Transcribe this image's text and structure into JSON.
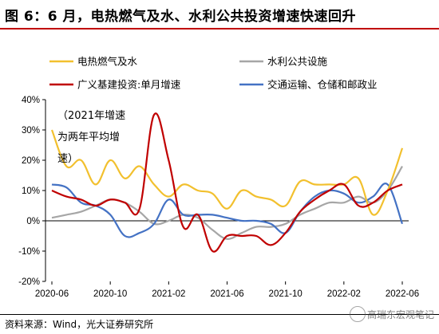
{
  "title": "图 6：6 月，电热燃气及水、水利公共投资增速快速回升",
  "source": "资料来源：Wind，光大证券研究所",
  "watermark": "高瑞东宏观笔记",
  "colors": {
    "title_rule": "#c00000",
    "utilities": "#f2c02e",
    "water_public": "#a6a6a6",
    "broad_infra": "#c00000",
    "transport": "#4472c4",
    "axis": "#000000"
  },
  "chart_data": {
    "type": "line",
    "title": "",
    "xlabel": "",
    "ylabel": "",
    "ylim": [
      -20,
      40
    ],
    "y_ticks": [
      -20,
      -10,
      0,
      10,
      20,
      30,
      40
    ],
    "y_tick_labels": [
      "-20%",
      "-10%",
      "0%",
      "10%",
      "20%",
      "30%",
      "40%"
    ],
    "x_tick_labels": [
      "2020-06",
      "2020-10",
      "2021-02",
      "2021-06",
      "2021-10",
      "2022-02",
      "2022-06"
    ],
    "x_tick_positions": [
      0,
      4,
      8,
      12,
      16,
      20,
      24
    ],
    "x": [
      0,
      1,
      2,
      3,
      4,
      5,
      6,
      7,
      8,
      9,
      10,
      11,
      12,
      13,
      14,
      15,
      16,
      17,
      18,
      19,
      20,
      21,
      22,
      23,
      24
    ],
    "annotation": [
      "（2021年增速",
      "为两年平均增",
      "速）"
    ],
    "grid": false,
    "legend_position": "top",
    "series": [
      {
        "key": "utilities",
        "name": "电热燃气及水",
        "values": [
          30,
          18,
          20,
          12,
          20,
          14,
          18,
          12,
          8,
          12,
          10,
          9,
          4,
          10,
          8,
          7,
          5,
          13,
          12,
          12,
          12,
          14,
          2,
          10,
          24
        ]
      },
      {
        "key": "water_public",
        "name": "水利公共设施",
        "values": [
          1,
          2,
          3,
          5,
          7,
          6,
          3,
          -1,
          0,
          2,
          1,
          -3,
          -6,
          -4,
          -2,
          -2,
          -1,
          2,
          4,
          6,
          6,
          8,
          6,
          10,
          18
        ]
      },
      {
        "key": "broad_infra",
        "name": "广义基建投资:单月增速",
        "values": [
          10,
          8,
          7,
          5,
          7,
          6,
          4,
          35,
          20,
          -2,
          2,
          -10,
          -5,
          -5,
          -5,
          -8,
          -4,
          3,
          7,
          10,
          12,
          5,
          6,
          10,
          12
        ]
      },
      {
        "key": "transport",
        "name": "交通运输、仓储和邮政业",
        "values": [
          12,
          11,
          6,
          5,
          2,
          -5,
          -4,
          -1,
          7,
          2,
          2,
          2,
          1,
          0,
          0,
          -1,
          -4,
          3,
          8,
          10,
          9,
          6,
          8,
          12,
          -1
        ]
      }
    ]
  }
}
